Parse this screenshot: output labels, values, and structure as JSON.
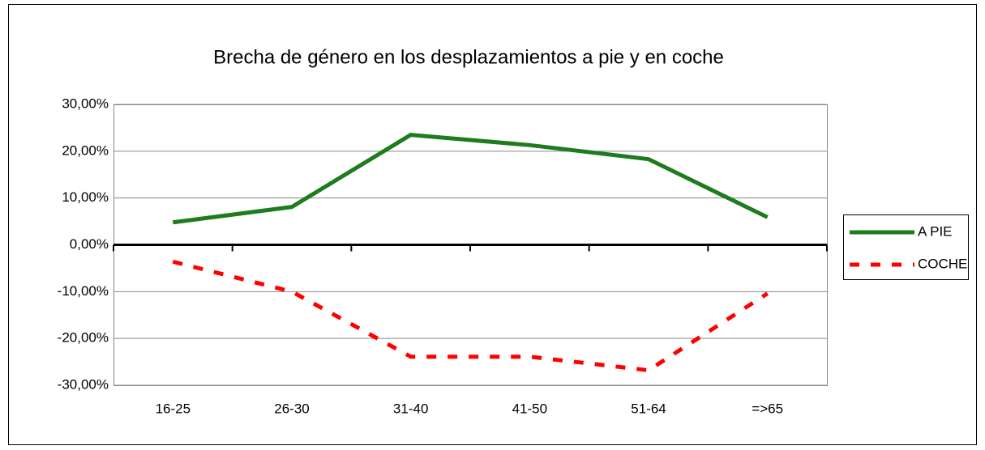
{
  "chart_data": {
    "type": "line",
    "title": "Brecha de género en los desplazamientos a pie y en coche",
    "categories": [
      "16-25",
      "26-30",
      "31-40",
      "41-50",
      "51-64",
      "=>65"
    ],
    "series": [
      {
        "name": "A PIE",
        "color": "#1e7b1e",
        "style": "solid",
        "values": [
          4.8,
          8.1,
          23.5,
          21.3,
          18.3,
          5.9
        ]
      },
      {
        "name": "COCHE",
        "color": "#ff0000",
        "style": "dashed",
        "values": [
          -3.6,
          -10.0,
          -23.9,
          -23.9,
          -26.8,
          -10.4
        ]
      }
    ],
    "ylim": [
      -30,
      30
    ],
    "yticks": [
      {
        "value": -30,
        "label": "-30,00%"
      },
      {
        "value": -20,
        "label": "-20,00%"
      },
      {
        "value": -10,
        "label": "-10,00%"
      },
      {
        "value": 0,
        "label": "0,00%"
      },
      {
        "value": 10,
        "label": "10,00%"
      },
      {
        "value": 20,
        "label": "20,00%"
      },
      {
        "value": 30,
        "label": "30,00%"
      }
    ],
    "grid": true,
    "legend": "right"
  }
}
